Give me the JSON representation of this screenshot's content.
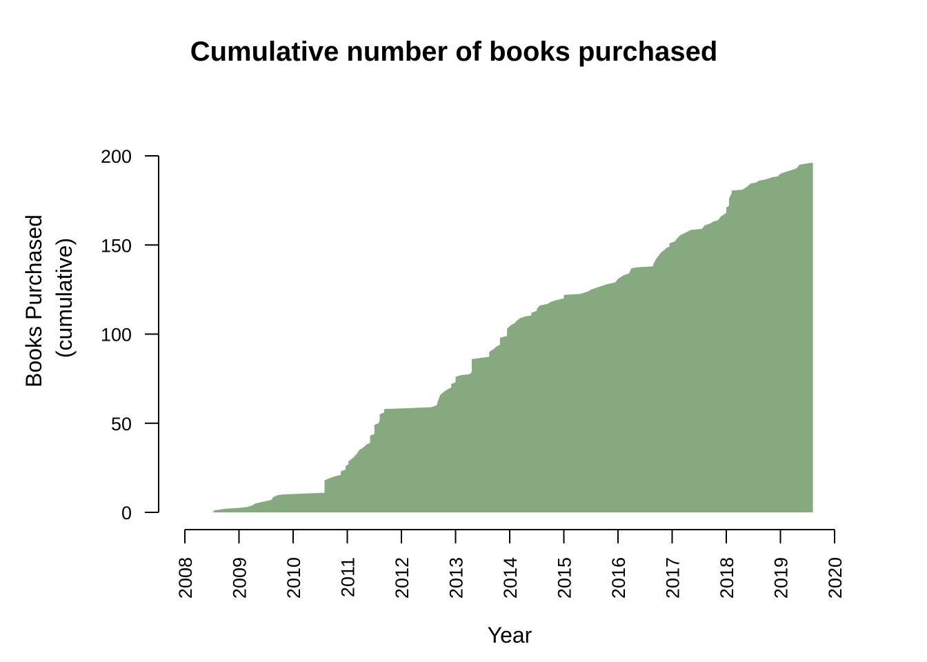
{
  "chart_data": {
    "type": "area",
    "title": "Cumulative number of books purchased",
    "xlabel": "Year",
    "ylabel": [
      "Books Purchased",
      "(cumulative)"
    ],
    "xlim": [
      2008,
      2020
    ],
    "ylim": [
      0,
      200
    ],
    "x_ticks": [
      2008,
      2009,
      2010,
      2011,
      2012,
      2013,
      2014,
      2015,
      2016,
      2017,
      2018,
      2019,
      2020
    ],
    "y_ticks": [
      0,
      50,
      100,
      150,
      200
    ],
    "grid": false,
    "fill_color": "#87a97f",
    "series": [
      {
        "points": [
          [
            2008.53,
            0
          ],
          [
            2008.53,
            1
          ],
          [
            2008.63,
            1.5
          ],
          [
            2008.75,
            2
          ],
          [
            2009.0,
            2.5
          ],
          [
            2009.15,
            3
          ],
          [
            2009.25,
            4
          ],
          [
            2009.3,
            5
          ],
          [
            2009.45,
            6
          ],
          [
            2009.6,
            7
          ],
          [
            2009.63,
            8.5
          ],
          [
            2009.7,
            9.5
          ],
          [
            2009.8,
            10
          ],
          [
            2010.15,
            10.5
          ],
          [
            2010.58,
            11
          ],
          [
            2010.58,
            18
          ],
          [
            2010.7,
            19.5
          ],
          [
            2010.8,
            20.5
          ],
          [
            2010.88,
            21
          ],
          [
            2010.88,
            23
          ],
          [
            2010.97,
            24
          ],
          [
            2010.97,
            26
          ],
          [
            2011.02,
            27
          ],
          [
            2011.02,
            28.5
          ],
          [
            2011.12,
            31
          ],
          [
            2011.18,
            33
          ],
          [
            2011.22,
            35
          ],
          [
            2011.28,
            36
          ],
          [
            2011.35,
            38
          ],
          [
            2011.42,
            39
          ],
          [
            2011.42,
            43
          ],
          [
            2011.5,
            44
          ],
          [
            2011.5,
            49
          ],
          [
            2011.58,
            50
          ],
          [
            2011.6,
            52
          ],
          [
            2011.6,
            55
          ],
          [
            2011.68,
            56
          ],
          [
            2011.68,
            58
          ],
          [
            2012.0,
            58.3
          ],
          [
            2012.55,
            59
          ],
          [
            2012.6,
            59.5
          ],
          [
            2012.65,
            60
          ],
          [
            2012.68,
            63
          ],
          [
            2012.72,
            66
          ],
          [
            2012.8,
            68
          ],
          [
            2012.85,
            69
          ],
          [
            2012.92,
            70
          ],
          [
            2012.92,
            72
          ],
          [
            2013.0,
            73
          ],
          [
            2013.0,
            76
          ],
          [
            2013.1,
            77
          ],
          [
            2013.25,
            77.5
          ],
          [
            2013.28,
            78
          ],
          [
            2013.3,
            79
          ],
          [
            2013.3,
            86
          ],
          [
            2013.55,
            87
          ],
          [
            2013.62,
            87.3
          ],
          [
            2013.62,
            90
          ],
          [
            2013.72,
            92
          ],
          [
            2013.75,
            93
          ],
          [
            2013.82,
            94
          ],
          [
            2013.82,
            98
          ],
          [
            2013.95,
            99
          ],
          [
            2013.95,
            103
          ],
          [
            2014.02,
            105
          ],
          [
            2014.08,
            106
          ],
          [
            2014.15,
            108
          ],
          [
            2014.2,
            109
          ],
          [
            2014.3,
            110
          ],
          [
            2014.4,
            110.5
          ],
          [
            2014.4,
            112
          ],
          [
            2014.5,
            113
          ],
          [
            2014.5,
            114
          ],
          [
            2014.55,
            116
          ],
          [
            2014.7,
            117
          ],
          [
            2014.75,
            118
          ],
          [
            2014.85,
            119
          ],
          [
            2015.0,
            120
          ],
          [
            2015.0,
            122
          ],
          [
            2015.3,
            122.5
          ],
          [
            2015.35,
            123
          ],
          [
            2015.45,
            124
          ],
          [
            2015.5,
            125
          ],
          [
            2015.6,
            126
          ],
          [
            2015.65,
            126.5
          ],
          [
            2015.75,
            127.5
          ],
          [
            2015.8,
            128
          ],
          [
            2015.95,
            129
          ],
          [
            2016.0,
            131
          ],
          [
            2016.1,
            133
          ],
          [
            2016.2,
            134
          ],
          [
            2016.25,
            137
          ],
          [
            2016.35,
            137.5
          ],
          [
            2016.65,
            138
          ],
          [
            2016.65,
            139
          ],
          [
            2016.7,
            142
          ],
          [
            2016.75,
            144
          ],
          [
            2016.8,
            146
          ],
          [
            2016.85,
            147
          ],
          [
            2016.9,
            148.5
          ],
          [
            2016.95,
            149
          ],
          [
            2016.95,
            151
          ],
          [
            2017.05,
            152
          ],
          [
            2017.1,
            154
          ],
          [
            2017.15,
            155.5
          ],
          [
            2017.25,
            157
          ],
          [
            2017.35,
            158.5
          ],
          [
            2017.55,
            159
          ],
          [
            2017.6,
            161
          ],
          [
            2017.7,
            162
          ],
          [
            2017.75,
            163
          ],
          [
            2017.85,
            164
          ],
          [
            2017.9,
            166
          ],
          [
            2017.95,
            167
          ],
          [
            2018.0,
            168
          ],
          [
            2018.0,
            171
          ],
          [
            2018.05,
            172
          ],
          [
            2018.05,
            176
          ],
          [
            2018.08,
            178
          ],
          [
            2018.1,
            179
          ],
          [
            2018.1,
            180.5
          ],
          [
            2018.3,
            181
          ],
          [
            2018.35,
            182
          ],
          [
            2018.4,
            183
          ],
          [
            2018.45,
            184.5
          ],
          [
            2018.55,
            185
          ],
          [
            2018.6,
            186
          ],
          [
            2018.75,
            187
          ],
          [
            2018.85,
            188
          ],
          [
            2018.95,
            188.5
          ],
          [
            2019.0,
            190
          ],
          [
            2019.1,
            191
          ],
          [
            2019.2,
            192
          ],
          [
            2019.3,
            193
          ],
          [
            2019.35,
            195
          ],
          [
            2019.55,
            196
          ],
          [
            2019.6,
            196
          ],
          [
            2019.6,
            198
          ],
          [
            2019.6,
            0
          ]
        ]
      }
    ]
  }
}
